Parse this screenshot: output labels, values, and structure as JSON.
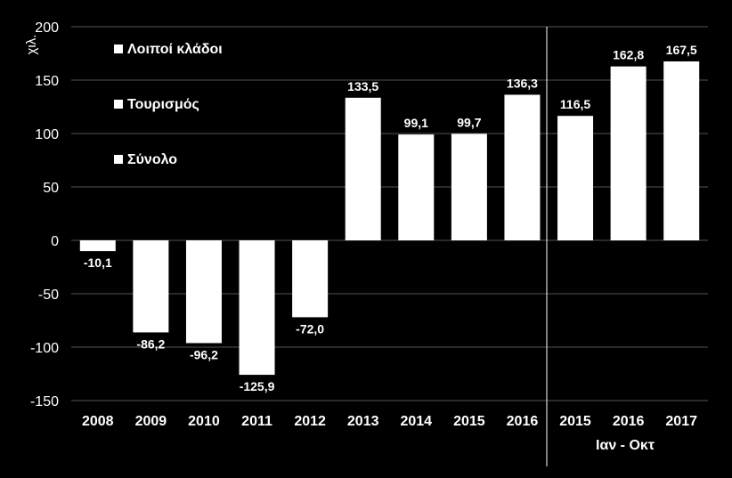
{
  "chart_data": {
    "type": "bar",
    "ylabel": "χιλ.",
    "ylim": [
      -150,
      200
    ],
    "yticks": [
      -150,
      -100,
      -50,
      0,
      50,
      100,
      150,
      200
    ],
    "grid": true,
    "legend_position": "top-left",
    "legend": [
      "Λοιποί κλάδοι",
      "Τουρισμός",
      "Σύνολο"
    ],
    "categories": [
      "2008",
      "2009",
      "2010",
      "2011",
      "2012",
      "2013",
      "2014",
      "2015",
      "2016",
      "2015",
      "2016",
      "2017"
    ],
    "series": [
      {
        "name": "Σύνολο",
        "values": [
          -10.1,
          -86.2,
          -96.2,
          -125.9,
          -72.0,
          133.5,
          99.1,
          99.7,
          136.3,
          116.5,
          162.8,
          167.5
        ],
        "labels": [
          "-10,1",
          "-86,2",
          "-96,2",
          "-125,9",
          "-72,0",
          "133,5",
          "99,1",
          "99,7",
          "136,3",
          "116,5",
          "162,8",
          "167,5"
        ]
      }
    ],
    "period_label": "Ιαν - Οκτ",
    "colors": {
      "background": "#000000",
      "bars": "#ffffff",
      "grid": "#555555",
      "text": "#ffffff"
    }
  }
}
